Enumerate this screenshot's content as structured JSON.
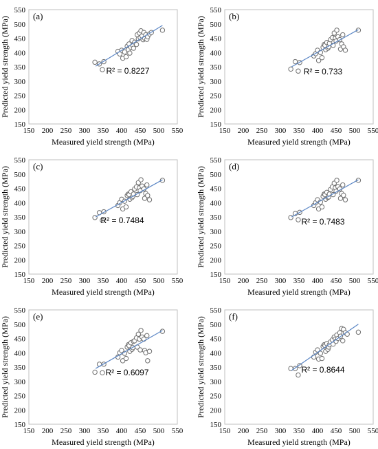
{
  "chart_data": [
    {
      "type": "scatter",
      "panel_label": "(a)",
      "r2_label": "R² = 0.8227",
      "xlabel": "Measured yield strength (MPa)",
      "ylabel": "Predicted yield strength (MPa)",
      "xlim": [
        150,
        550
      ],
      "ylim": [
        150,
        550
      ],
      "xticks": [
        "150",
        "200",
        "250",
        "300",
        "350",
        "400",
        "450",
        "500",
        "550"
      ],
      "yticks": [
        "150",
        "200",
        "250",
        "300",
        "350",
        "400",
        "450",
        "500",
        "550"
      ],
      "grid": false,
      "trendline": [
        [
          330,
          352
        ],
        [
          510,
          495
        ]
      ],
      "x": [
        328,
        340,
        348,
        352,
        390,
        395,
        400,
        403,
        408,
        412,
        415,
        418,
        420,
        422,
        425,
        428,
        430,
        432,
        435,
        440,
        442,
        445,
        448,
        450,
        452,
        455,
        458,
        460,
        462,
        465,
        468,
        470,
        475,
        480,
        510
      ],
      "y": [
        366,
        360,
        340,
        368,
        404,
        395,
        408,
        380,
        402,
        385,
        422,
        410,
        430,
        398,
        418,
        442,
        425,
        415,
        436,
        428,
        462,
        448,
        468,
        452,
        476,
        458,
        445,
        470,
        450,
        462,
        446,
        455,
        465,
        470,
        478
      ]
    },
    {
      "type": "scatter",
      "panel_label": "(b)",
      "r2_label": "R² = 0.733",
      "xlabel": "Measured yield strength (MPa)",
      "ylabel": "Predicted yield strength (MPa)",
      "xlim": [
        150,
        550
      ],
      "ylim": [
        150,
        550
      ],
      "xticks": [
        "150",
        "200",
        "250",
        "300",
        "350",
        "400",
        "450",
        "500",
        "550"
      ],
      "yticks": [
        "150",
        "200",
        "250",
        "300",
        "350",
        "400",
        "450",
        "500",
        "550"
      ],
      "grid": false,
      "trendline": [
        [
          330,
          350
        ],
        [
          510,
          480
        ]
      ],
      "x": [
        328,
        340,
        348,
        352,
        390,
        395,
        400,
        403,
        408,
        412,
        415,
        418,
        420,
        422,
        425,
        428,
        430,
        432,
        435,
        440,
        442,
        445,
        448,
        450,
        452,
        455,
        460,
        462,
        465,
        468,
        470,
        475,
        510
      ],
      "y": [
        342,
        368,
        335,
        365,
        388,
        396,
        408,
        372,
        400,
        382,
        418,
        428,
        425,
        410,
        435,
        415,
        420,
        432,
        445,
        452,
        425,
        468,
        450,
        440,
        478,
        455,
        445,
        412,
        430,
        462,
        420,
        408,
        478
      ]
    },
    {
      "type": "scatter",
      "panel_label": "(c)",
      "r2_label": "R² = 0.7484",
      "xlabel": "Measured yield strength (MPa)",
      "ylabel": "Predicted yield strength (MPa)",
      "xlim": [
        150,
        550
      ],
      "ylim": [
        150,
        550
      ],
      "xticks": [
        "150",
        "200",
        "250",
        "300",
        "350",
        "400",
        "450",
        "500",
        "550"
      ],
      "yticks": [
        "150",
        "200",
        "250",
        "300",
        "350",
        "400",
        "450",
        "500",
        "550"
      ],
      "grid": false,
      "trendline": [
        [
          330,
          350
        ],
        [
          510,
          480
        ]
      ],
      "x": [
        328,
        340,
        348,
        352,
        390,
        395,
        400,
        403,
        408,
        412,
        415,
        418,
        420,
        422,
        425,
        428,
        430,
        432,
        435,
        440,
        442,
        445,
        448,
        450,
        452,
        455,
        460,
        462,
        465,
        468,
        470,
        475,
        510
      ],
      "y": [
        348,
        365,
        338,
        368,
        390,
        400,
        412,
        378,
        405,
        385,
        425,
        430,
        428,
        412,
        438,
        418,
        422,
        430,
        448,
        455,
        428,
        470,
        452,
        442,
        480,
        458,
        448,
        415,
        432,
        462,
        425,
        410,
        478
      ]
    },
    {
      "type": "scatter",
      "panel_label": "(d)",
      "r2_label": "R² = 0.7483",
      "xlabel": "Measured yield strength (MPa)",
      "ylabel": "Predicted yield strength (MPa)",
      "xlim": [
        150,
        550
      ],
      "ylim": [
        150,
        550
      ],
      "xticks": [
        "150",
        "200",
        "250",
        "300",
        "350",
        "400",
        "450",
        "500",
        "550"
      ],
      "yticks": [
        "150",
        "200",
        "250",
        "300",
        "350",
        "400",
        "450",
        "500",
        "550"
      ],
      "grid": false,
      "trendline": [
        [
          330,
          350
        ],
        [
          510,
          480
        ]
      ],
      "x": [
        328,
        340,
        348,
        352,
        390,
        395,
        400,
        403,
        408,
        412,
        415,
        418,
        420,
        422,
        425,
        428,
        430,
        432,
        435,
        440,
        442,
        445,
        448,
        450,
        452,
        455,
        460,
        462,
        465,
        468,
        470,
        475,
        510
      ],
      "y": [
        348,
        362,
        340,
        366,
        390,
        400,
        410,
        378,
        402,
        385,
        422,
        430,
        428,
        412,
        436,
        418,
        420,
        430,
        446,
        455,
        428,
        468,
        452,
        440,
        478,
        456,
        448,
        415,
        432,
        462,
        426,
        410,
        478
      ]
    },
    {
      "type": "scatter",
      "panel_label": "(e)",
      "r2_label": "R² = 0.6097",
      "xlabel": "Measured yield strength (MPa)",
      "ylabel": "Predicted yield strength (MPa)",
      "xlim": [
        150,
        550
      ],
      "ylim": [
        150,
        550
      ],
      "xticks": [
        "150",
        "200",
        "250",
        "300",
        "350",
        "400",
        "450",
        "500",
        "550"
      ],
      "yticks": [
        "150",
        "200",
        "250",
        "300",
        "350",
        "400",
        "450",
        "500",
        "550"
      ],
      "grid": false,
      "trendline": [
        [
          330,
          345
        ],
        [
          510,
          478
        ]
      ],
      "x": [
        328,
        340,
        348,
        352,
        390,
        395,
        400,
        403,
        408,
        412,
        415,
        418,
        420,
        422,
        425,
        428,
        430,
        432,
        435,
        440,
        442,
        445,
        448,
        450,
        452,
        455,
        460,
        462,
        465,
        468,
        470,
        475,
        510
      ],
      "y": [
        332,
        360,
        330,
        360,
        385,
        400,
        408,
        372,
        398,
        380,
        420,
        428,
        425,
        405,
        435,
        412,
        418,
        440,
        442,
        452,
        420,
        465,
        448,
        410,
        478,
        455,
        448,
        408,
        400,
        460,
        372,
        405,
        475
      ]
    },
    {
      "type": "scatter",
      "panel_label": "(f)",
      "r2_label": "R² = 0.8644",
      "xlabel": "Measured yield strength (MPa)",
      "ylabel": "Predicted yield strength (MPa)",
      "xlim": [
        150,
        550
      ],
      "ylim": [
        150,
        550
      ],
      "xticks": [
        "150",
        "200",
        "250",
        "300",
        "350",
        "400",
        "450",
        "500",
        "550"
      ],
      "yticks": [
        "150",
        "200",
        "250",
        "300",
        "350",
        "400",
        "450",
        "500",
        "550"
      ],
      "grid": false,
      "trendline": [
        [
          330,
          338
        ],
        [
          510,
          500
        ]
      ],
      "x": [
        328,
        340,
        348,
        352,
        390,
        395,
        400,
        403,
        408,
        412,
        415,
        418,
        420,
        422,
        425,
        428,
        430,
        432,
        435,
        440,
        442,
        445,
        448,
        450,
        452,
        455,
        460,
        462,
        465,
        468,
        470,
        475,
        480,
        510
      ],
      "y": [
        345,
        345,
        322,
        355,
        385,
        402,
        410,
        378,
        398,
        380,
        422,
        428,
        425,
        405,
        432,
        412,
        420,
        428,
        438,
        445,
        430,
        455,
        448,
        440,
        462,
        450,
        470,
        458,
        485,
        442,
        482,
        470,
        465,
        472
      ]
    }
  ]
}
